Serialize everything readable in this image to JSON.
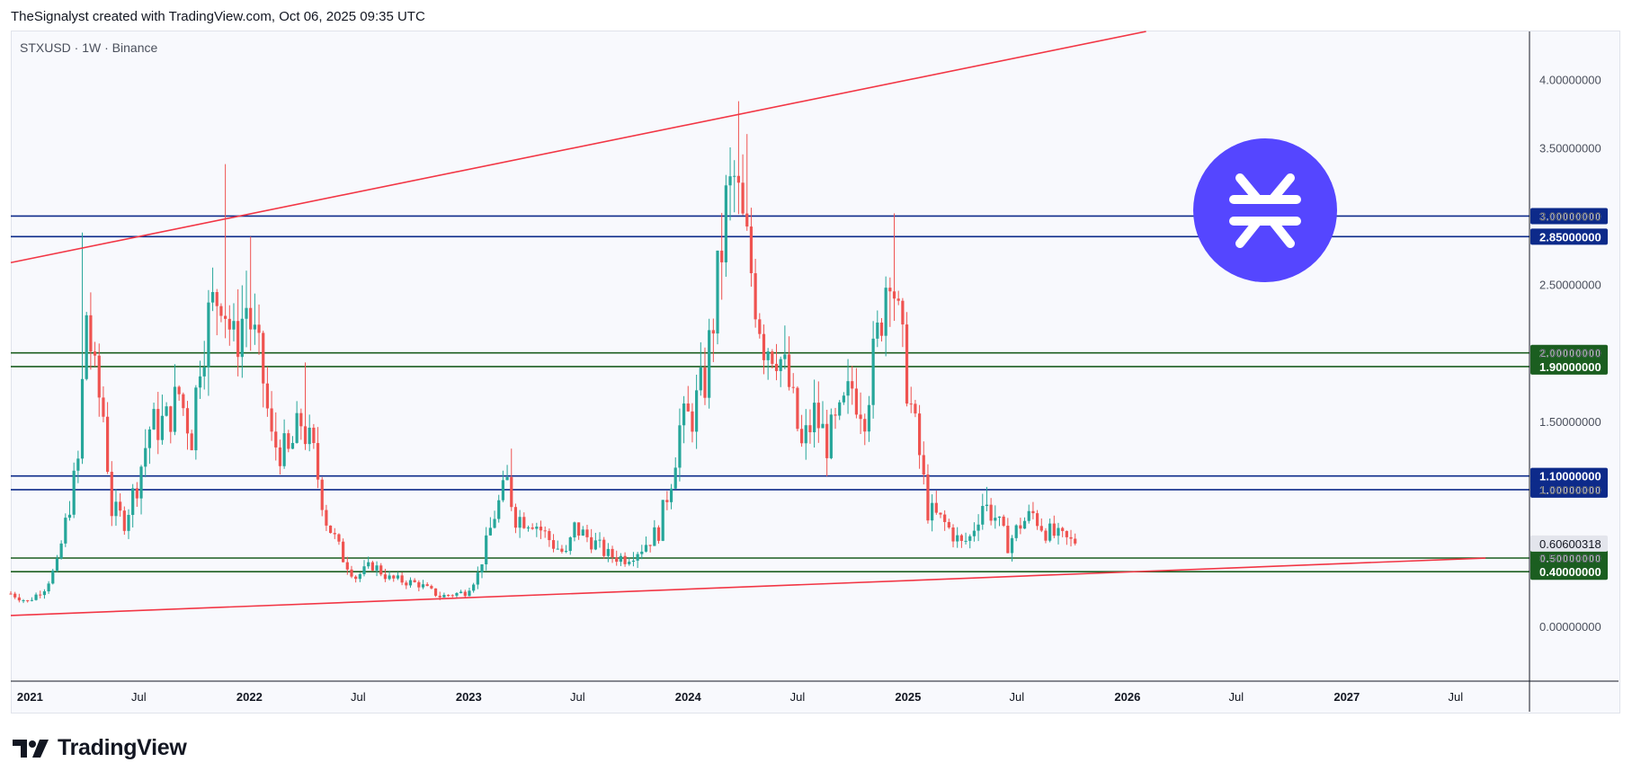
{
  "header": {
    "credit": "TheSignalyst created with TradingView.com, Oct 06, 2025 09:35 UTC"
  },
  "symbol_label": "STXUSD · 1W · Binance",
  "footer": {
    "brand": "TradingView"
  },
  "colors": {
    "up": "#26a69a",
    "down": "#ef5350",
    "support_green": "#1b5e20",
    "level_blue": "#0d2a8a",
    "trendline": "#f23645",
    "logo_bg": "#5546ff"
  },
  "chart_data": {
    "type": "candlestick",
    "interval": "1W",
    "ylim": [
      -0.4,
      4.35
    ],
    "xlim": [
      "2020-11-30",
      "2027-11-01"
    ],
    "price_ticks": [
      "0.00000000",
      "0.50000000",
      "1.00000000",
      "1.50000000",
      "2.00000000",
      "2.50000000",
      "3.00000000",
      "3.50000000",
      "4.00000000"
    ],
    "price_tick_values": [
      0,
      0.5,
      1,
      1.5,
      2,
      2.5,
      3,
      3.5,
      4
    ],
    "time_ticks": [
      {
        "label": "2021",
        "date": "2021-01-01",
        "bold": true
      },
      {
        "label": "Jul",
        "date": "2021-07-01",
        "bold": false
      },
      {
        "label": "2022",
        "date": "2022-01-01",
        "bold": true
      },
      {
        "label": "Jul",
        "date": "2022-07-01",
        "bold": false
      },
      {
        "label": "2023",
        "date": "2023-01-01",
        "bold": true
      },
      {
        "label": "Jul",
        "date": "2023-07-01",
        "bold": false
      },
      {
        "label": "2024",
        "date": "2024-01-01",
        "bold": true
      },
      {
        "label": "Jul",
        "date": "2024-07-01",
        "bold": false
      },
      {
        "label": "2025",
        "date": "2025-01-01",
        "bold": true
      },
      {
        "label": "Jul",
        "date": "2025-07-01",
        "bold": false
      },
      {
        "label": "2026",
        "date": "2026-01-01",
        "bold": true
      },
      {
        "label": "Jul",
        "date": "2026-07-01",
        "bold": false
      },
      {
        "label": "2027",
        "date": "2027-01-01",
        "bold": true
      },
      {
        "label": "Jul",
        "date": "2027-07-01",
        "bold": false
      }
    ],
    "last_price": {
      "label": "0.60600318",
      "value": 0.606
    },
    "horizontal_levels": [
      {
        "label": "3.00000000",
        "value": 3.0,
        "color": "#0d2a8a"
      },
      {
        "label": "2.85000000",
        "value": 2.85,
        "color": "#0d2a8a"
      },
      {
        "label": "2.00000000",
        "value": 2.0,
        "color": "#1b5e20"
      },
      {
        "label": "1.90000000",
        "value": 1.9,
        "color": "#1b5e20"
      },
      {
        "label": "1.10000000",
        "value": 1.1,
        "color": "#0d2a8a"
      },
      {
        "label": "1.00000000",
        "value": 1.0,
        "color": "#0d2a8a"
      },
      {
        "label": "0.50000000",
        "value": 0.5,
        "color": "#1b5e20"
      },
      {
        "label": "0.40000000",
        "value": 0.4,
        "color": "#1b5e20"
      }
    ],
    "trendlines": [
      {
        "name": "upper",
        "from": [
          "2020-11-30",
          2.66
        ],
        "to": [
          "2026-02-01",
          4.35
        ]
      },
      {
        "name": "lower",
        "from": [
          "2020-11-30",
          0.08
        ],
        "to": [
          "2027-08-20",
          0.5
        ]
      }
    ],
    "price_anchors": [
      [
        "2020-11-30",
        0.24
      ],
      [
        "2020-12-28",
        0.18
      ],
      [
        "2021-01-25",
        0.28
      ],
      [
        "2021-02-15",
        0.45
      ],
      [
        "2021-03-01",
        0.75
      ],
      [
        "2021-03-22",
        1.2
      ],
      [
        "2021-04-05",
        2.3
      ],
      [
        "2021-04-19",
        1.8
      ],
      [
        "2021-05-03",
        1.55
      ],
      [
        "2021-05-17",
        0.85
      ],
      [
        "2021-06-07",
        0.78
      ],
      [
        "2021-06-28",
        1.05
      ],
      [
        "2021-07-19",
        1.45
      ],
      [
        "2021-08-16",
        1.5
      ],
      [
        "2021-09-06",
        1.7
      ],
      [
        "2021-09-27",
        1.4
      ],
      [
        "2021-10-11",
        2.0
      ],
      [
        "2021-10-25",
        2.25
      ],
      [
        "2021-11-15",
        2.5
      ],
      [
        "2021-12-06",
        2.05
      ],
      [
        "2021-12-27",
        2.35
      ],
      [
        "2022-01-24",
        1.8
      ],
      [
        "2022-02-07",
        1.35
      ],
      [
        "2022-03-07",
        1.25
      ],
      [
        "2022-03-28",
        1.5
      ],
      [
        "2022-04-18",
        1.25
      ],
      [
        "2022-05-09",
        0.78
      ],
      [
        "2022-06-06",
        0.5
      ],
      [
        "2022-06-27",
        0.36
      ],
      [
        "2022-07-25",
        0.45
      ],
      [
        "2022-08-22",
        0.35
      ],
      [
        "2022-10-10",
        0.31
      ],
      [
        "2022-11-14",
        0.22
      ],
      [
        "2022-12-26",
        0.25
      ],
      [
        "2023-01-16",
        0.38
      ],
      [
        "2023-02-13",
        0.82
      ],
      [
        "2023-03-06",
        1.05
      ],
      [
        "2023-03-20",
        0.8
      ],
      [
        "2023-04-17",
        0.78
      ],
      [
        "2023-05-22",
        0.6
      ],
      [
        "2023-06-12",
        0.52
      ],
      [
        "2023-06-26",
        0.72
      ],
      [
        "2023-07-24",
        0.63
      ],
      [
        "2023-08-21",
        0.52
      ],
      [
        "2023-09-18",
        0.5
      ],
      [
        "2023-10-16",
        0.58
      ],
      [
        "2023-11-13",
        0.7
      ],
      [
        "2023-12-04",
        1.1
      ],
      [
        "2023-12-18",
        1.45
      ],
      [
        "2024-01-08",
        1.55
      ],
      [
        "2024-01-29",
        1.8
      ],
      [
        "2024-02-19",
        2.5
      ],
      [
        "2024-03-04",
        3.05
      ],
      [
        "2024-03-18",
        3.25
      ],
      [
        "2024-04-01",
        2.9
      ],
      [
        "2024-04-15",
        2.6
      ],
      [
        "2024-05-06",
        2.1
      ],
      [
        "2024-05-27",
        2.05
      ],
      [
        "2024-06-17",
        1.75
      ],
      [
        "2024-07-08",
        1.3
      ],
      [
        "2024-07-29",
        1.55
      ],
      [
        "2024-08-19",
        1.35
      ],
      [
        "2024-09-09",
        1.5
      ],
      [
        "2024-09-30",
        1.75
      ],
      [
        "2024-10-21",
        1.6
      ],
      [
        "2024-11-11",
        2.1
      ],
      [
        "2024-12-02",
        2.75
      ],
      [
        "2024-12-16",
        2.2
      ],
      [
        "2025-01-06",
        1.6
      ],
      [
        "2025-01-20",
        1.25
      ],
      [
        "2025-02-03",
        0.85
      ],
      [
        "2025-03-03",
        0.75
      ],
      [
        "2025-03-31",
        0.6
      ],
      [
        "2025-04-14",
        0.65
      ],
      [
        "2025-05-05",
        0.9
      ],
      [
        "2025-05-26",
        0.8
      ],
      [
        "2025-06-16",
        0.6
      ],
      [
        "2025-07-07",
        0.75
      ],
      [
        "2025-07-28",
        0.82
      ],
      [
        "2025-08-18",
        0.7
      ],
      [
        "2025-09-08",
        0.65
      ],
      [
        "2025-10-06",
        0.606
      ]
    ],
    "wick_highlights": [
      [
        "2021-03-29",
        2.88
      ],
      [
        "2021-11-22",
        3.38
      ],
      [
        "2022-01-03",
        2.85
      ],
      [
        "2022-04-04",
        1.93
      ],
      [
        "2023-03-13",
        1.3
      ],
      [
        "2024-03-25",
        3.84
      ],
      [
        "2024-04-08",
        3.6
      ],
      [
        "2024-12-09",
        3.02
      ],
      [
        "2024-08-05",
        1.05
      ],
      [
        "2025-05-12",
        1.02
      ]
    ]
  }
}
